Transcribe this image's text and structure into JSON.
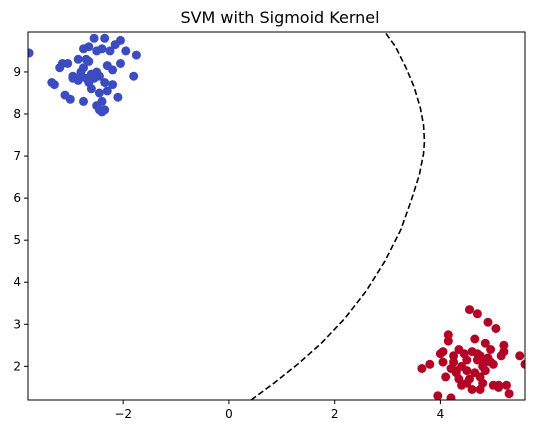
{
  "chart_data": {
    "type": "scatter",
    "title": "SVM with Sigmoid Kernel",
    "xlabel": "",
    "ylabel": "",
    "xlim": [
      -3.8,
      5.6
    ],
    "ylim": [
      1.2,
      9.95
    ],
    "xticks": [
      -2,
      0,
      2,
      4
    ],
    "yticks": [
      2,
      3,
      4,
      5,
      6,
      7,
      8,
      9
    ],
    "xtick_labels": [
      "−2",
      "0",
      "2",
      "4"
    ],
    "ytick_labels": [
      "2",
      "3",
      "4",
      "5",
      "6",
      "7",
      "8",
      "9"
    ],
    "grid": false,
    "legend": "none",
    "colors": {
      "class_0": "#3b4cc0",
      "class_1": "#b40426",
      "boundary": "#000000"
    },
    "series": [
      {
        "class": 0,
        "x": [
          -3.78,
          -3.35,
          -3.2,
          -3.1,
          -3.05,
          -2.95,
          -2.85,
          -2.8,
          -2.75,
          -2.7,
          -2.65,
          -2.6,
          -2.55,
          -2.5,
          -2.45,
          -2.4,
          -2.35,
          -2.3,
          -2.25,
          -2.2,
          -2.15,
          -2.1,
          -2.05,
          -1.95,
          -1.8,
          -1.75,
          -3.3,
          -3.0,
          -2.9,
          -2.75,
          -2.6,
          -2.45,
          -2.35,
          -2.2,
          -2.85,
          -2.7,
          -2.55,
          -2.4,
          -3.15,
          -2.95,
          -2.8,
          -2.65,
          -2.5,
          -2.35,
          -2.05,
          -2.6,
          -2.5,
          -2.45,
          -2.9,
          -2.75,
          -2.3,
          -2.55,
          -2.65,
          -2.4
        ],
        "y": [
          9.45,
          8.75,
          9.1,
          8.45,
          9.2,
          8.9,
          9.3,
          9.0,
          9.55,
          8.85,
          9.25,
          8.6,
          9.8,
          9.5,
          8.9,
          8.05,
          9.8,
          9.15,
          9.5,
          9.05,
          9.65,
          8.4,
          9.2,
          9.5,
          8.9,
          9.4,
          8.7,
          8.35,
          8.85,
          9.1,
          8.95,
          8.5,
          8.1,
          8.7,
          8.8,
          9.3,
          8.85,
          8.3,
          9.2,
          8.85,
          8.9,
          9.6,
          9.0,
          8.75,
          9.75,
          8.9,
          8.2,
          8.1,
          8.85,
          8.3,
          8.55,
          8.9,
          8.75,
          9.55
        ]
      },
      {
        "class": 1,
        "x": [
          3.65,
          3.8,
          3.95,
          4.0,
          4.05,
          4.1,
          4.15,
          4.2,
          4.25,
          4.3,
          4.35,
          4.4,
          4.45,
          4.5,
          4.55,
          4.6,
          4.65,
          4.7,
          4.75,
          4.8,
          4.85,
          4.9,
          4.95,
          5.0,
          5.05,
          5.1,
          5.15,
          5.2,
          5.25,
          5.3,
          5.5,
          5.6,
          4.15,
          4.3,
          4.5,
          4.7,
          4.85,
          5.0,
          4.6,
          4.75,
          4.9,
          4.4,
          4.55,
          4.25,
          4.8,
          5.1,
          4.65,
          4.95,
          4.35,
          4.05,
          5.2,
          4.7,
          4.5,
          4.85,
          4.2,
          4.75
        ],
        "y": [
          1.95,
          2.05,
          1.3,
          2.3,
          2.1,
          1.75,
          2.75,
          1.25,
          2.1,
          1.9,
          2.4,
          1.55,
          2.3,
          2.15,
          3.35,
          1.45,
          2.65,
          3.25,
          2.25,
          1.6,
          2.1,
          3.05,
          2.4,
          1.55,
          2.9,
          1.5,
          2.25,
          2.5,
          1.55,
          1.35,
          2.25,
          2.05,
          2.6,
          1.85,
          1.6,
          2.3,
          1.9,
          2.05,
          2.35,
          1.45,
          2.2,
          2.0,
          1.7,
          2.25,
          2.0,
          1.55,
          1.85,
          2.1,
          1.7,
          2.35,
          2.35,
          2.15,
          1.9,
          2.55,
          1.95,
          1.75
        ]
      }
    ],
    "boundary": {
      "style": "dashed",
      "x": [
        0.42,
        0.85,
        1.3,
        1.75,
        2.2,
        2.6,
        2.95,
        3.25,
        3.45,
        3.6,
        3.68,
        3.7,
        3.68,
        3.62,
        3.5,
        3.35,
        3.15,
        2.95
      ],
      "y": [
        1.2,
        1.6,
        2.05,
        2.55,
        3.15,
        3.8,
        4.5,
        5.25,
        5.95,
        6.55,
        7.05,
        7.35,
        7.75,
        8.15,
        8.65,
        9.1,
        9.6,
        9.95
      ]
    }
  }
}
